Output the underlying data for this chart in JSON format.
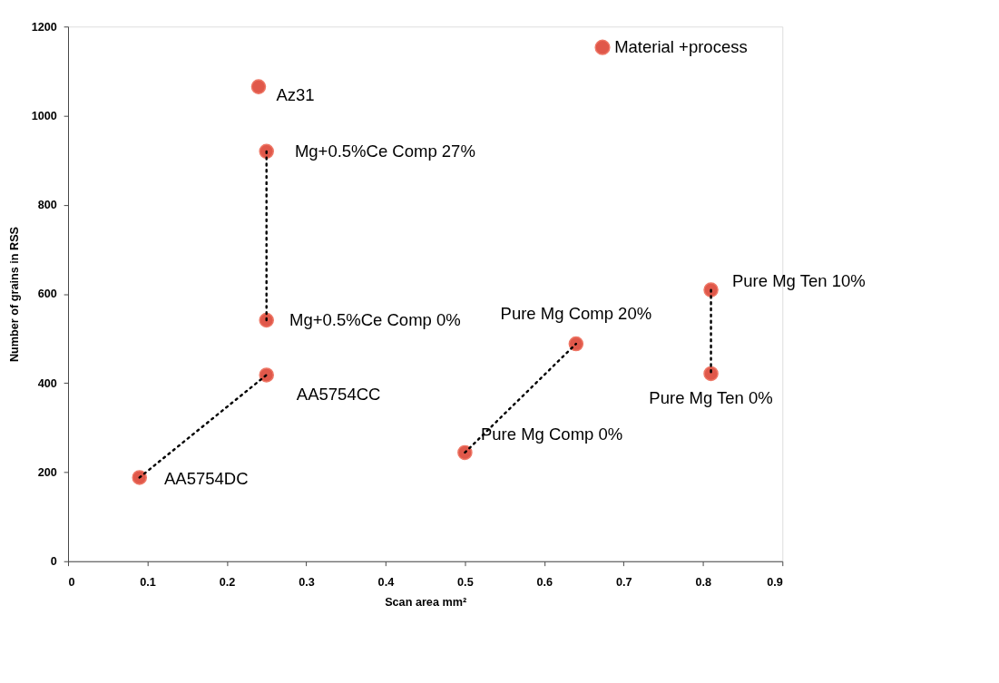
{
  "chart_data": {
    "type": "scatter",
    "xlabel": "Scan area mm²",
    "ylabel": "Number of grains in RSS",
    "xlim": [
      0,
      0.9
    ],
    "xticks": [
      0,
      0.1,
      0.2,
      0.3,
      0.4,
      0.5,
      0.6,
      0.7,
      0.8,
      0.9
    ],
    "ylim": [
      0,
      1200
    ],
    "yticks": [
      0,
      200,
      400,
      600,
      800,
      1000,
      1200
    ],
    "grid": false,
    "legend": "top right",
    "series": [
      {
        "name": "Material +process",
        "marker": "circle",
        "color": "#e0584a",
        "x": [
          0.09,
          0.25,
          0.24,
          0.25,
          0.25,
          0.5,
          0.64,
          0.81,
          0.81
        ],
        "values": [
          188,
          418,
          1065,
          920,
          541,
          244,
          488,
          609,
          421
        ]
      },
      {
        "type": "line",
        "line_style": "dotted",
        "color": "#000000",
        "x": [
          0.09,
          0.25
        ],
        "values": [
          188,
          418
        ]
      },
      {
        "type": "line",
        "line_style": "dotted",
        "color": "#000000",
        "x": [
          0.25,
          0.25
        ],
        "values": [
          920,
          541
        ]
      },
      {
        "type": "line",
        "line_style": "dotted",
        "color": "#000000",
        "x": [
          0.5,
          0.64
        ],
        "values": [
          244,
          488
        ]
      },
      {
        "type": "line",
        "line_style": "dotted",
        "color": "#000000",
        "x": [
          0.81,
          0.81
        ],
        "values": [
          609,
          421
        ]
      }
    ],
    "annotations": [
      {
        "text": "AA5754DC",
        "x": 0.09,
        "y": 188
      },
      {
        "text": "AA5754CC",
        "x": 0.25,
        "y": 418
      },
      {
        "text": "Az31",
        "x": 0.24,
        "y": 1065
      },
      {
        "text": "Mg+0.5%Ce Comp 27%",
        "x": 0.25,
        "y": 920
      },
      {
        "text": "Mg+0.5%Ce Comp 0%",
        "x": 0.25,
        "y": 541
      },
      {
        "text": "Pure Mg Comp 0%",
        "x": 0.5,
        "y": 244
      },
      {
        "text": "Pure Mg Comp 20%",
        "x": 0.64,
        "y": 488
      },
      {
        "text": "Pure Mg Ten 10%",
        "x": 0.81,
        "y": 609
      },
      {
        "text": "Pure Mg Ten 0%",
        "x": 0.81,
        "y": 421
      }
    ]
  }
}
